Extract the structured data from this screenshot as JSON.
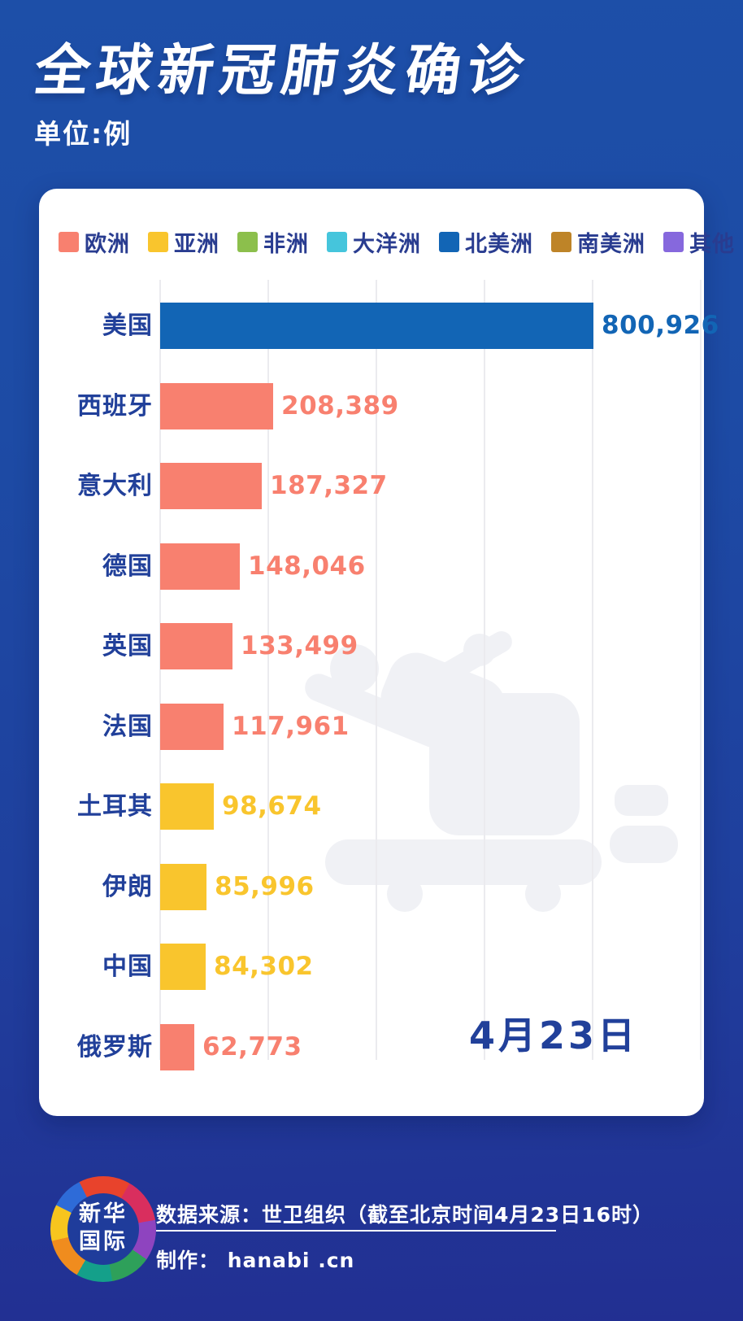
{
  "page": {
    "title": "全球新冠肺炎确诊",
    "subtitle": "单位:例"
  },
  "legend": [
    {
      "label": "欧洲",
      "color": "#F8806F"
    },
    {
      "label": "亚洲",
      "color": "#F9C52D"
    },
    {
      "label": "非洲",
      "color": "#8CBF4C"
    },
    {
      "label": "大洋洲",
      "color": "#45C5DC"
    },
    {
      "label": "北美洲",
      "color": "#1265B5"
    },
    {
      "label": "南美洲",
      "color": "#BE8428"
    },
    {
      "label": "其他",
      "color": "#8668DD"
    }
  ],
  "chart_data": {
    "type": "bar",
    "orientation": "horizontal",
    "title": "全球新冠肺炎确诊",
    "unit": "例",
    "categories": [
      "美国",
      "西班牙",
      "意大利",
      "德国",
      "英国",
      "法国",
      "土耳其",
      "伊朗",
      "中国",
      "俄罗斯"
    ],
    "values": [
      800926,
      208389,
      187327,
      148046,
      133499,
      117961,
      98674,
      85996,
      84302,
      62773
    ],
    "value_labels": [
      "800,926",
      "208,389",
      "187,327",
      "148,046",
      "133,499",
      "117,961",
      "98,674",
      "85,996",
      "84,302",
      "62,773"
    ],
    "continent": [
      "北美洲",
      "欧洲",
      "欧洲",
      "欧洲",
      "欧洲",
      "欧洲",
      "亚洲",
      "亚洲",
      "亚洲",
      "欧洲"
    ],
    "bar_colors": [
      "#1265B5",
      "#F8806F",
      "#F8806F",
      "#F8806F",
      "#F8806F",
      "#F8806F",
      "#F9C52D",
      "#F9C52D",
      "#F9C52D",
      "#F8806F"
    ],
    "xlim": [
      0,
      1000000
    ],
    "grid_step": 200000,
    "grid": true,
    "legend_position": "top",
    "date_label": "4月23日"
  },
  "footer": {
    "logo_line1": "新华",
    "logo_line2": "国际",
    "source": "数据来源：世卫组织（截至北京时间4月23日16时）",
    "maker": "制作： hanabi .cn"
  },
  "colors": {
    "background_top": "#1D4FA8",
    "background_bottom": "#222F92",
    "card": "#FFFFFF",
    "gridline": "#EBEBEF",
    "label_navy": "#21409A",
    "watermark": "#F0F1F5"
  }
}
